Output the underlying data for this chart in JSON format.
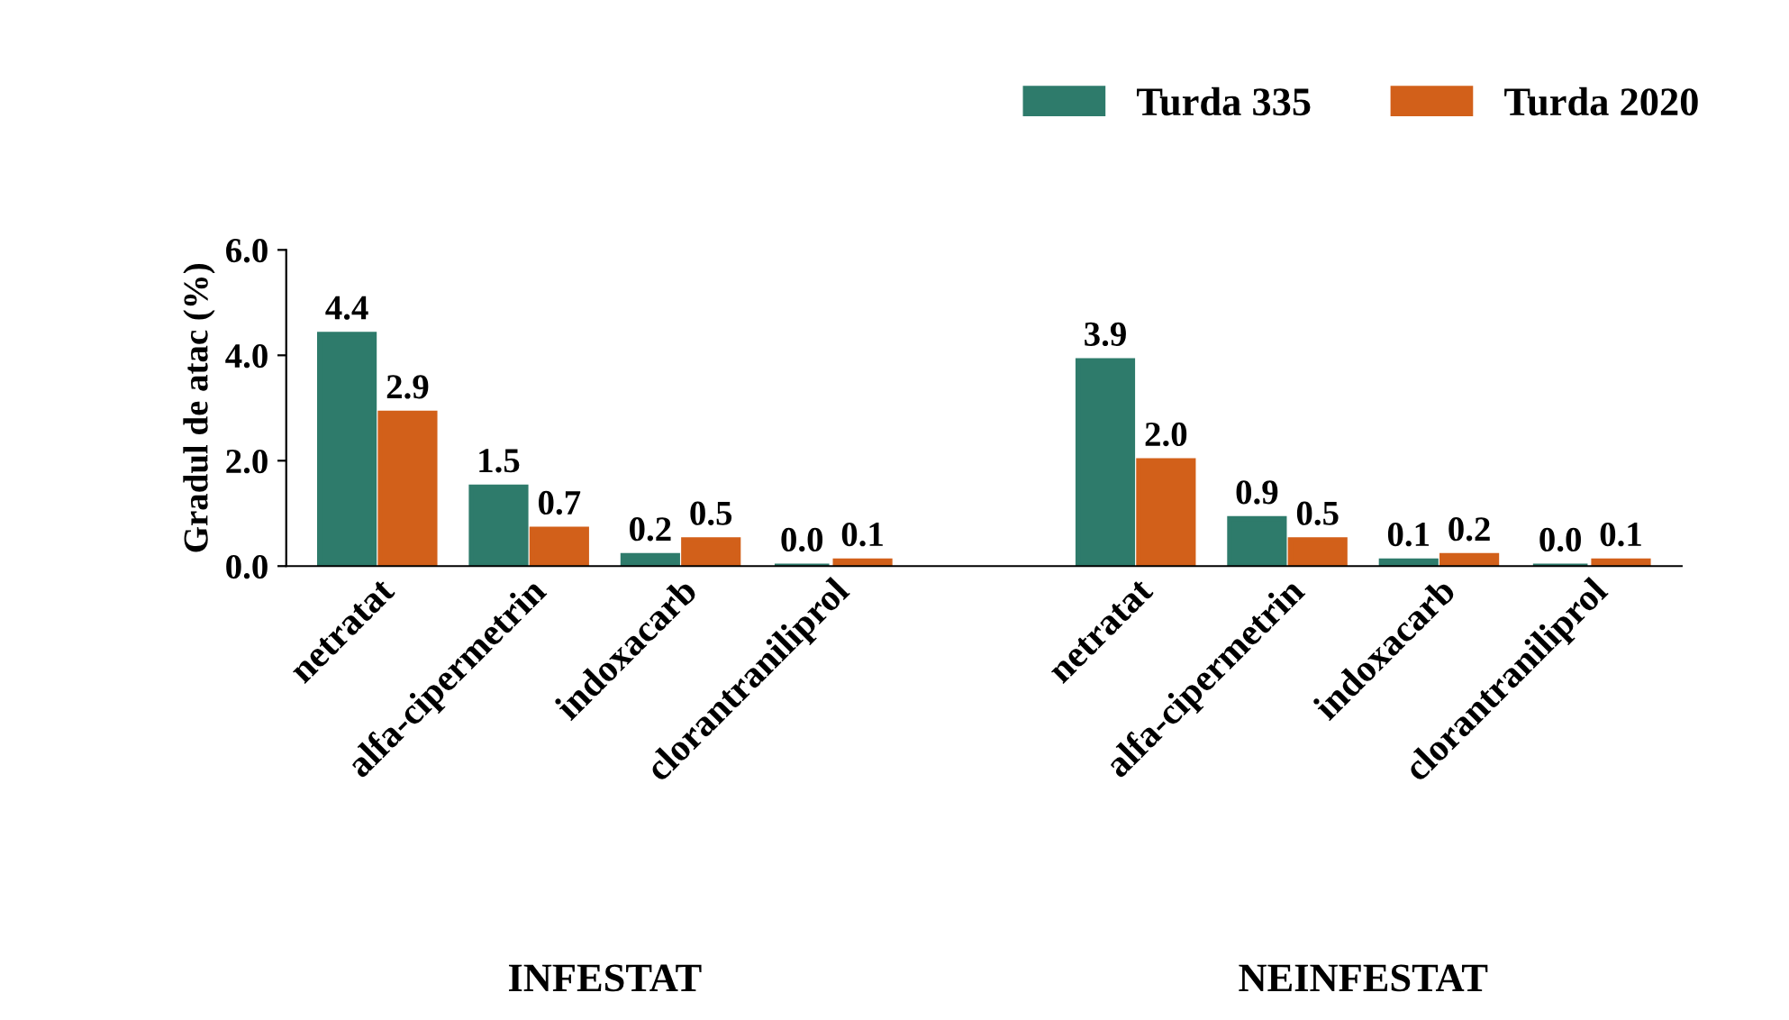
{
  "chart_data": {
    "type": "bar",
    "ylabel": "Gradul de atac (%)",
    "categories": [
      "netratat",
      "alfa-cipermetrin",
      "indoxacarb",
      "clorantraniliprol",
      null,
      "netratat",
      "alfa-cipermetrin",
      "indoxacarb",
      "clorantraniliprol"
    ],
    "series": [
      {
        "name": "Turda 335",
        "color": "#2e7b6b",
        "values": [
          4.4,
          1.5,
          0.2,
          0.0,
          null,
          3.9,
          0.9,
          0.1,
          0.0
        ],
        "value_labels": [
          "4.4",
          "1.5",
          "0.2",
          "0.0",
          null,
          "3.9",
          "0.9",
          "0.1",
          "0.0"
        ]
      },
      {
        "name": "Turda 2020",
        "color": "#d2601a",
        "values": [
          2.9,
          0.7,
          0.5,
          0.1,
          null,
          2.0,
          0.5,
          0.2,
          0.1
        ],
        "value_labels": [
          "2.9",
          "0.7",
          "0.5",
          "0.1",
          null,
          "2.0",
          "0.5",
          "0.2",
          "0.1"
        ]
      }
    ],
    "ylim": [
      0,
      6
    ],
    "yticks": [
      {
        "value": 0,
        "label": "0.0"
      },
      {
        "value": 2,
        "label": "2.0"
      },
      {
        "value": 4,
        "label": "4.0"
      },
      {
        "value": 6,
        "label": "6.0"
      }
    ],
    "grid": false,
    "legend": "top right",
    "annotations": [
      "INFESTAT",
      "NEINFESTAT"
    ]
  }
}
